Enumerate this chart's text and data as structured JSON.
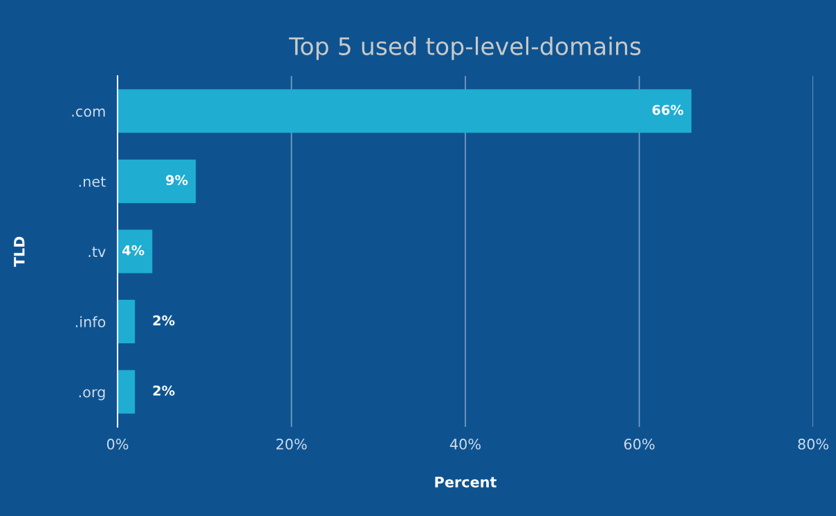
{
  "chart_data": {
    "type": "bar",
    "orientation": "horizontal",
    "title": "Top 5 used top-level-domains",
    "xlabel": "Percent",
    "ylabel": "TLD",
    "categories": [
      ".com",
      ".net",
      ".tv",
      ".info",
      ".org"
    ],
    "values": [
      66,
      9,
      4,
      2,
      2
    ],
    "value_labels": [
      "66%",
      "9%",
      "4%",
      "2%",
      "2%"
    ],
    "color": "#1fadd2",
    "xlim": [
      0,
      80
    ],
    "xticks": [
      {
        "value": 0,
        "label": "0%"
      },
      {
        "value": 20,
        "label": "20%"
      },
      {
        "value": 40,
        "label": "40%"
      },
      {
        "value": 60,
        "label": "60%"
      },
      {
        "value": 80,
        "label": "80%"
      }
    ],
    "grid": "x",
    "legend": false
  }
}
